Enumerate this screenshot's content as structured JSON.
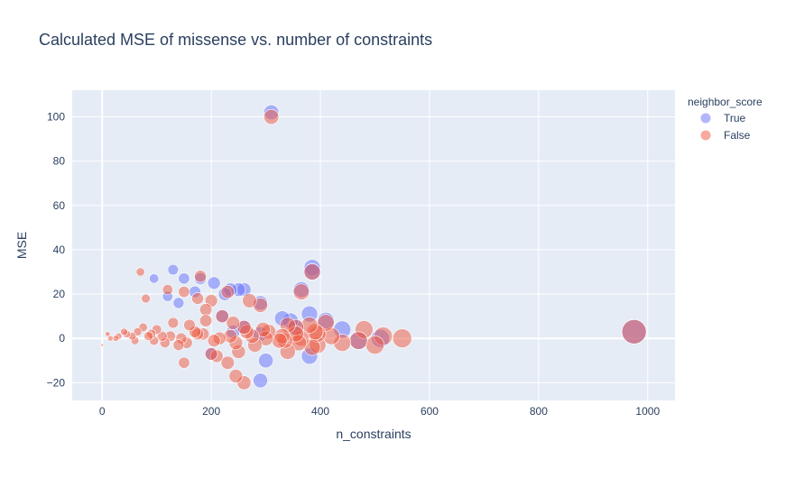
{
  "chart_data": {
    "type": "scatter",
    "title": "Calculated MSE of missense vs. number of constraints",
    "xlabel": "n_constraints",
    "ylabel": "MSE",
    "xlim": [
      -55,
      1050
    ],
    "ylim": [
      -28,
      112
    ],
    "x_ticks": [
      0,
      200,
      400,
      600,
      800,
      1000
    ],
    "y_ticks": [
      -20,
      0,
      20,
      40,
      60,
      80,
      100
    ],
    "grid": true,
    "legend": {
      "title": "neighbor_score",
      "position": "top-right",
      "entries": [
        "True",
        "False"
      ]
    },
    "marker_size_encodes": "n_constraints",
    "series": [
      {
        "name": "True",
        "color": "#636efa",
        "opacity": 0.5,
        "x": [
          310,
          385,
          385,
          365,
          290,
          290,
          250,
          260,
          205,
          180,
          150,
          130,
          120,
          95,
          170,
          235,
          225,
          345,
          355,
          380,
          330,
          140,
          410,
          975,
          510,
          470,
          440,
          380,
          300,
          200,
          220,
          260,
          240,
          290
        ],
        "y": [
          102,
          32,
          30,
          22,
          16,
          -19,
          22,
          22,
          25,
          27,
          27,
          31,
          19,
          27,
          21,
          22,
          20,
          8,
          5,
          11,
          9,
          16,
          8,
          3,
          0,
          -1,
          4,
          -8,
          -10,
          -7,
          10,
          5,
          3,
          2
        ]
      },
      {
        "name": "False",
        "color": "#ef553b",
        "opacity": 0.5,
        "x": [
          310,
          385,
          365,
          290,
          260,
          245,
          230,
          180,
          175,
          200,
          190,
          120,
          80,
          70,
          150,
          270,
          340,
          390,
          410,
          420,
          380,
          355,
          470,
          500,
          515,
          550,
          975,
          440,
          480,
          395,
          360,
          330,
          300,
          280,
          250,
          220,
          190,
          160,
          130,
          100,
          75,
          55,
          40,
          25,
          10,
          0,
          85,
          115,
          145,
          175,
          205,
          235,
          265,
          295,
          325,
          355,
          385,
          240,
          260,
          340,
          210,
          170,
          140,
          110,
          90,
          60,
          30,
          15,
          45,
          65,
          95,
          125,
          155,
          185,
          215,
          245,
          275,
          305,
          335,
          365,
          395,
          230,
          200,
          150
        ],
        "y": [
          100,
          30,
          21,
          15,
          -20,
          -17,
          21,
          28,
          18,
          17,
          13,
          22,
          18,
          30,
          21,
          17,
          6,
          3,
          7,
          1,
          6,
          5,
          -1,
          -3,
          1,
          0,
          3,
          -2,
          4,
          -3,
          -2,
          1,
          0,
          -3,
          -6,
          10,
          8,
          6,
          7,
          4,
          5,
          1,
          3,
          0,
          2,
          -3,
          1,
          -2,
          0,
          2,
          -1,
          1,
          3,
          4,
          -1,
          2,
          -4,
          7,
          5,
          -6,
          -8,
          3,
          -3,
          1,
          2,
          -1,
          1,
          0,
          2,
          3,
          -1,
          1,
          -2,
          2,
          0,
          -2,
          1,
          3,
          -1,
          0,
          2,
          -11,
          -7,
          -11
        ]
      }
    ]
  }
}
